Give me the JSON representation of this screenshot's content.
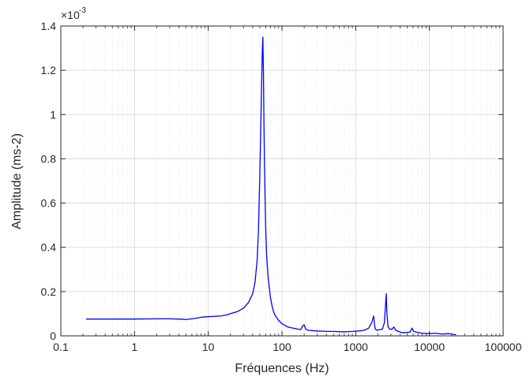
{
  "chart_data": {
    "type": "line",
    "title": "",
    "xlabel": "Fréquences (Hz)",
    "ylabel": "Amplitude (ms-2)",
    "x_scale": "log",
    "xlim": [
      0.1,
      100000
    ],
    "ylim": [
      0,
      0.0014
    ],
    "x_ticks": [
      0.1,
      1,
      10,
      100,
      1000,
      10000,
      100000
    ],
    "x_tick_labels": [
      "0.1",
      "1",
      "10",
      "100",
      "1000",
      "10000",
      "100000"
    ],
    "y_ticks": [
      0,
      0.0002,
      0.0004,
      0.0006,
      0.0008,
      0.001,
      0.0012,
      0.0014
    ],
    "y_tick_labels": [
      "0",
      "0.2",
      "0.4",
      "0.6",
      "0.8",
      "1",
      "1.2",
      "1.4"
    ],
    "y_exponent_base": "×10",
    "y_exponent": "-3",
    "grid": true,
    "minor_grid": true,
    "line_color": "#0000ff",
    "series": [
      {
        "x": [
          0.22,
          0.5,
          1,
          2,
          3,
          4,
          5,
          6,
          7,
          8,
          10,
          12,
          15,
          18,
          20,
          25,
          30,
          35,
          40,
          43,
          46,
          48,
          50,
          52,
          54,
          55,
          56,
          57,
          58,
          60,
          62,
          65,
          70,
          75,
          80,
          90,
          100,
          120,
          150,
          180,
          190,
          200,
          210,
          230,
          300,
          400,
          500,
          700,
          900,
          1100,
          1300,
          1500,
          1650,
          1750,
          1800,
          1850,
          1950,
          2100,
          2300,
          2450,
          2550,
          2600,
          2650,
          2750,
          2900,
          3100,
          3300,
          3500,
          3800,
          4200,
          5000,
          5500,
          5800,
          6100,
          7000,
          8000,
          10000,
          12000,
          15000,
          18000,
          20000,
          23000
        ],
        "y": [
          7.6e-05,
          7.6e-05,
          7.6e-05,
          7.7e-05,
          7.7e-05,
          7.6e-05,
          7.4e-05,
          7.7e-05,
          8e-05,
          8.4e-05,
          8.7e-05,
          8.8e-05,
          9e-05,
          9.5e-05,
          0.0001,
          0.00011,
          0.000125,
          0.00015,
          0.00019,
          0.00024,
          0.00034,
          0.00048,
          0.00072,
          0.001,
          0.00128,
          0.00135,
          0.0012,
          0.00095,
          0.00075,
          0.0005,
          0.00036,
          0.00026,
          0.00017,
          0.00012,
          9.5e-05,
          7e-05,
          5.5e-05,
          4e-05,
          3.3e-05,
          2.8e-05,
          4.5e-05,
          5e-05,
          3e-05,
          2.5e-05,
          2.2e-05,
          2e-05,
          2e-05,
          1.8e-05,
          2e-05,
          2.2e-05,
          2.5e-05,
          3.5e-05,
          6e-05,
          9e-05,
          5e-05,
          3e-05,
          2.5e-05,
          2.8e-05,
          3e-05,
          6e-05,
          0.00015,
          0.00019,
          0.0001,
          4e-05,
          3e-05,
          3e-05,
          4e-05,
          2.5e-05,
          2e-05,
          1.5e-05,
          1.5e-05,
          1.8e-05,
          3.5e-05,
          2e-05,
          1.5e-05,
          1.2e-05,
          1e-05,
          1.2e-05,
          8e-06,
          1e-05,
          8e-06,
          5e-06
        ]
      }
    ]
  }
}
